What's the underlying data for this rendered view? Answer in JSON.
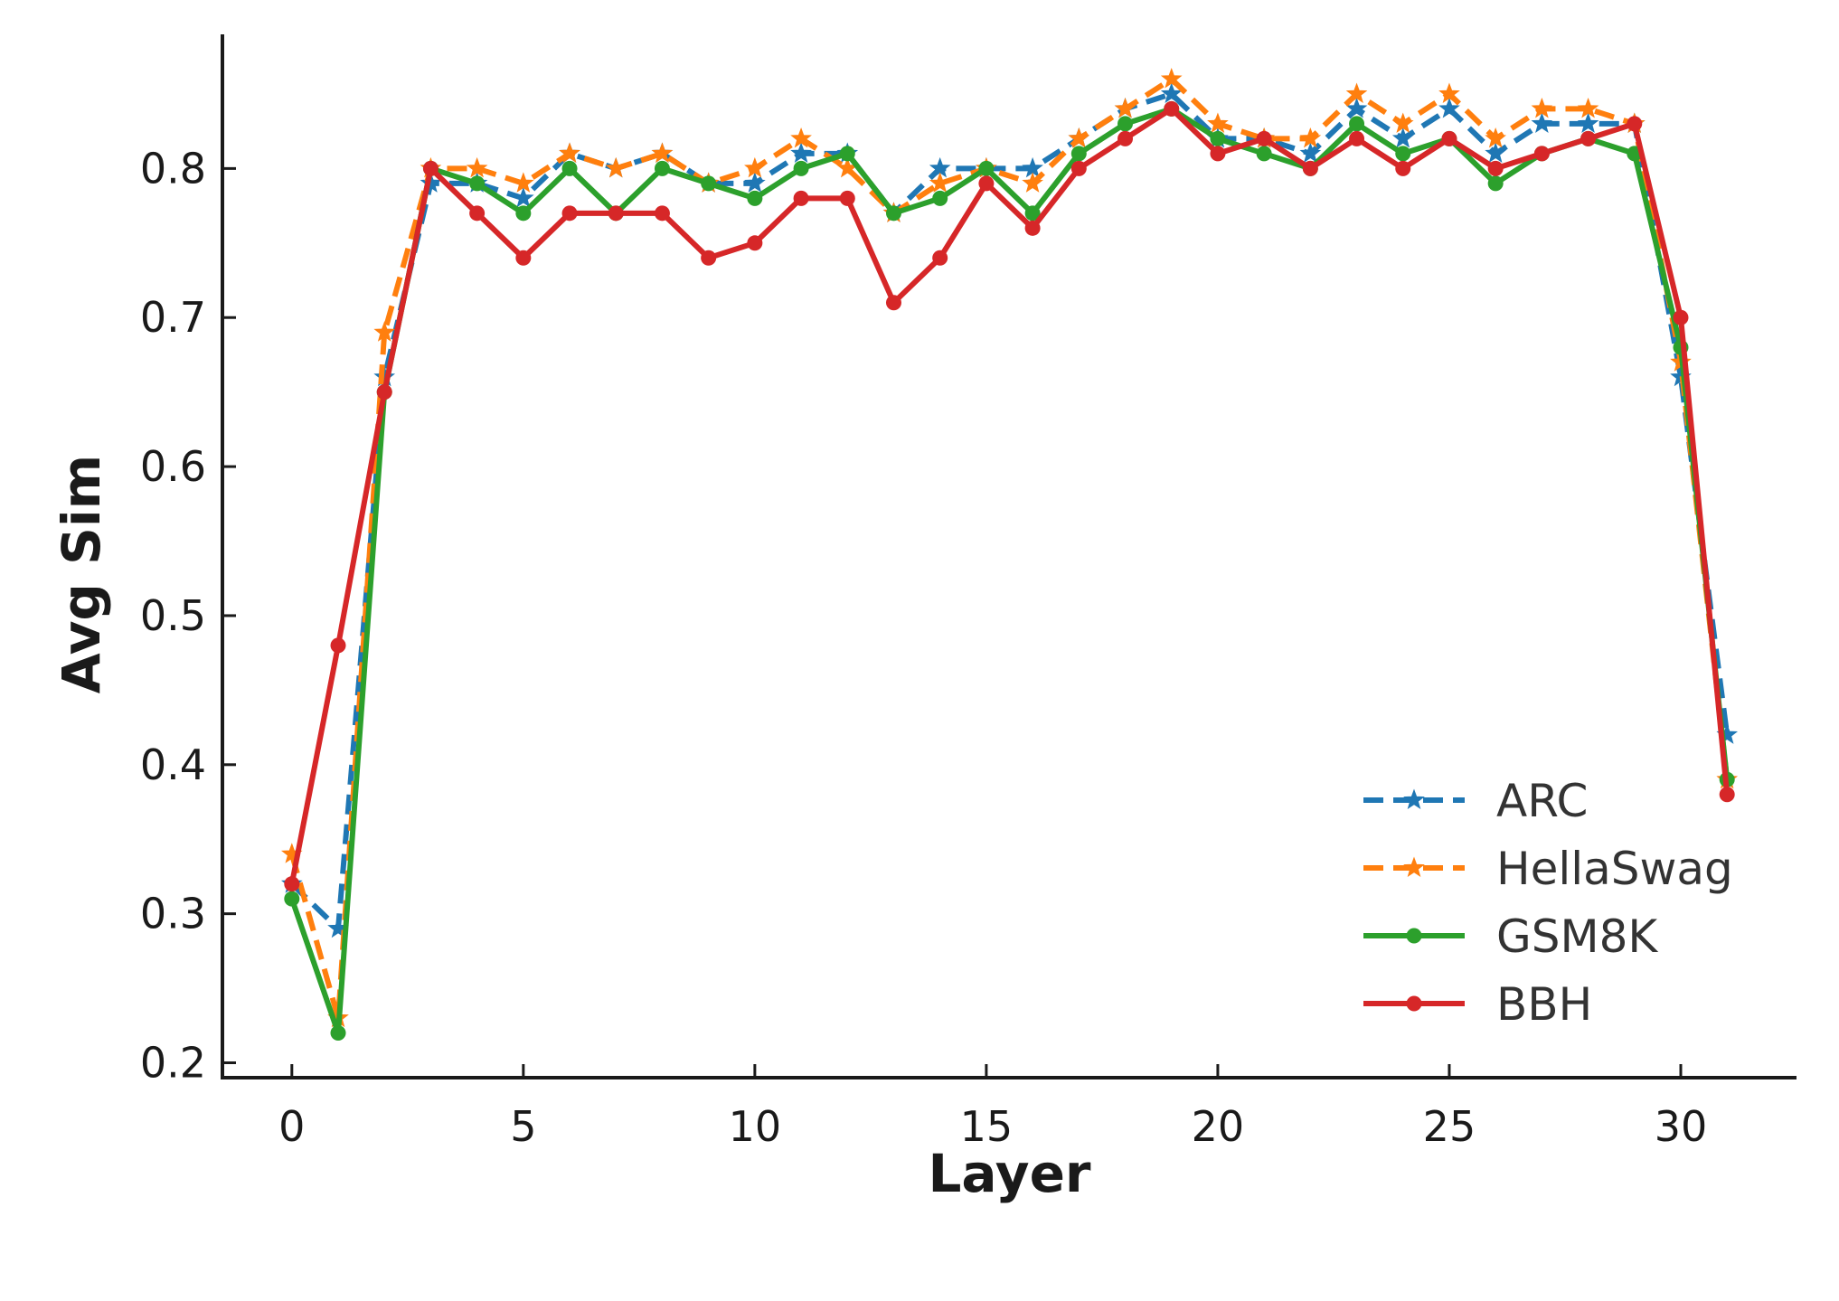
{
  "chart_data": {
    "type": "line",
    "title": "",
    "xlabel": "Layer",
    "ylabel": "Avg Sim",
    "xlim": [
      -1.5,
      32.5
    ],
    "ylim": [
      0.19,
      0.89
    ],
    "x_ticks": [
      0,
      5,
      10,
      15,
      20,
      25,
      30
    ],
    "y_ticks": [
      0.2,
      0.3,
      0.4,
      0.5,
      0.6,
      0.7,
      0.8
    ],
    "grid": false,
    "legend_position": "lower-right",
    "x": [
      0,
      1,
      2,
      3,
      4,
      5,
      6,
      7,
      8,
      9,
      10,
      11,
      12,
      13,
      14,
      15,
      16,
      17,
      18,
      19,
      20,
      21,
      22,
      23,
      24,
      25,
      26,
      27,
      28,
      29,
      30,
      31
    ],
    "series": [
      {
        "name": "ARC",
        "color": "#1f77b4",
        "line_style": "dashed",
        "marker": "star",
        "values": [
          0.32,
          0.29,
          0.66,
          0.79,
          0.79,
          0.78,
          0.81,
          0.8,
          0.81,
          0.79,
          0.79,
          0.81,
          0.81,
          0.77,
          0.8,
          0.8,
          0.8,
          0.82,
          0.84,
          0.85,
          0.82,
          0.82,
          0.81,
          0.84,
          0.82,
          0.84,
          0.81,
          0.83,
          0.83,
          0.83,
          0.66,
          0.42
        ]
      },
      {
        "name": "HellaSwag",
        "color": "#ff7f0e",
        "line_style": "dashed",
        "marker": "star",
        "values": [
          0.34,
          0.23,
          0.69,
          0.8,
          0.8,
          0.79,
          0.81,
          0.8,
          0.81,
          0.79,
          0.8,
          0.82,
          0.8,
          0.77,
          0.79,
          0.8,
          0.79,
          0.82,
          0.84,
          0.86,
          0.83,
          0.82,
          0.82,
          0.85,
          0.83,
          0.85,
          0.82,
          0.84,
          0.84,
          0.83,
          0.67,
          0.39
        ]
      },
      {
        "name": "GSM8K",
        "color": "#2ca02c",
        "line_style": "solid",
        "marker": "circle",
        "values": [
          0.31,
          0.22,
          0.65,
          0.8,
          0.79,
          0.77,
          0.8,
          0.77,
          0.8,
          0.79,
          0.78,
          0.8,
          0.81,
          0.77,
          0.78,
          0.8,
          0.77,
          0.81,
          0.83,
          0.84,
          0.82,
          0.81,
          0.8,
          0.83,
          0.81,
          0.82,
          0.79,
          0.81,
          0.82,
          0.81,
          0.68,
          0.39
        ]
      },
      {
        "name": "BBH",
        "color": "#d62728",
        "line_style": "solid",
        "marker": "circle",
        "values": [
          0.32,
          0.48,
          0.65,
          0.8,
          0.77,
          0.74,
          0.77,
          0.77,
          0.77,
          0.74,
          0.75,
          0.78,
          0.78,
          0.71,
          0.74,
          0.79,
          0.76,
          0.8,
          0.82,
          0.84,
          0.81,
          0.82,
          0.8,
          0.82,
          0.8,
          0.82,
          0.8,
          0.81,
          0.82,
          0.83,
          0.7,
          0.38
        ]
      }
    ]
  }
}
